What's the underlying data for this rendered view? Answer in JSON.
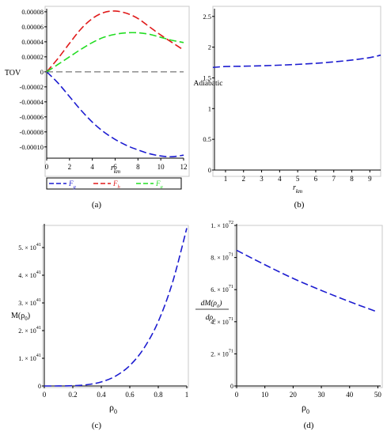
{
  "colors": {
    "blue": "#1c1cd0",
    "red": "#e01a1a",
    "green": "#22dd22",
    "axis": "#000000",
    "frame": "#c8c8c8",
    "zero_line": "#555555"
  },
  "chart_data": [
    {
      "id": "a",
      "type": "line",
      "caption": "(a)",
      "ylabel": "TOV",
      "xlabel_main": "r",
      "xlabel_sub": "km",
      "xlim": [
        0,
        12
      ],
      "ylim": [
        -0.000115,
        8.2e-05
      ],
      "xticks": [
        0,
        2,
        4,
        6,
        8,
        10,
        12
      ],
      "xtick_labels": [
        "0",
        "2",
        "4",
        "6",
        "8",
        "10",
        "12"
      ],
      "yticks": [
        8e-05,
        6e-05,
        4e-05,
        2e-05,
        0,
        -2e-05,
        -4e-05,
        -6e-05,
        -8e-05,
        -0.0001
      ],
      "ytick_labels": [
        "0.00008",
        "0.00006",
        "0.00004",
        "0.00002",
        "0",
        "-0.00002",
        "-0.00004",
        "-0.00006",
        "-0.00008",
        "-0.00010"
      ],
      "zero_line": true,
      "legend_position": "bottom-left",
      "series": [
        {
          "name": "F",
          "name_sub": "g",
          "color": "#1c1cd0",
          "x": [
            0,
            1,
            2,
            3,
            4,
            5,
            6,
            7,
            8,
            9,
            10,
            11,
            12
          ],
          "y": [
            0,
            -1.5e-05,
            -3.3e-05,
            -5.1e-05,
            -6.7e-05,
            -8e-05,
            -9e-05,
            -9.8e-05,
            -0.000104,
            -0.000109,
            -0.000112,
            -0.000113,
            -0.000111
          ]
        },
        {
          "name": "F",
          "name_sub": "h",
          "color": "#e01a1a",
          "x": [
            0,
            1,
            2,
            3,
            4,
            5,
            6,
            7,
            8,
            9,
            10,
            11,
            12
          ],
          "y": [
            0,
            1.8e-05,
            3.8e-05,
            5.7e-05,
            7.1e-05,
            7.9e-05,
            8.1e-05,
            7.8e-05,
            7.1e-05,
            6e-05,
            4.9e-05,
            3.9e-05,
            2.9e-05
          ]
        },
        {
          "name": "F",
          "name_sub": "a",
          "color": "#22dd22",
          "x": [
            0,
            1,
            2,
            3,
            4,
            5,
            6,
            7,
            8,
            9,
            10,
            11,
            12
          ],
          "y": [
            0,
            1e-05,
            2e-05,
            3e-05,
            3.9e-05,
            4.6e-05,
            5e-05,
            5.2e-05,
            5.2e-05,
            5e-05,
            4.6e-05,
            4.2e-05,
            3.9e-05
          ]
        }
      ]
    },
    {
      "id": "b",
      "type": "line",
      "caption": "(b)",
      "ylabel": "Adiabatic",
      "xlabel_main": "r",
      "xlabel_sub": "km",
      "xlim": [
        0.3,
        9.6
      ],
      "ylim": [
        0,
        2.6
      ],
      "xticks": [
        1,
        2,
        3,
        4,
        5,
        6,
        7,
        8,
        9
      ],
      "xtick_labels": [
        "1",
        "2",
        "3",
        "4",
        "5",
        "6",
        "7",
        "8",
        "9"
      ],
      "yticks": [
        0,
        0.5,
        1,
        1.5,
        2,
        2.5
      ],
      "ytick_labels": [
        "0",
        "0.5",
        "1",
        "1.5",
        "2",
        "2.5"
      ],
      "series": [
        {
          "color": "#1c1cd0",
          "x": [
            0.3,
            1,
            2,
            3,
            4,
            5,
            6,
            7,
            8,
            9,
            9.6
          ],
          "y": [
            1.67,
            1.685,
            1.69,
            1.697,
            1.707,
            1.72,
            1.737,
            1.76,
            1.79,
            1.83,
            1.87
          ]
        }
      ]
    },
    {
      "id": "c",
      "type": "line",
      "caption": "(c)",
      "ylabel_main": "M(ρ",
      "ylabel_sub": "0",
      "ylabel_tail": ")",
      "xlabel_main": "ρ",
      "xlabel_sub": "0",
      "xlim": [
        0,
        1
      ],
      "ylim": [
        0,
        5.8e+41
      ],
      "xticks": [
        0,
        0.2,
        0.4,
        0.6,
        0.8,
        1
      ],
      "xtick_labels": [
        "0",
        "0.2",
        "0.4",
        "0.6",
        "0.8",
        "1"
      ],
      "yticks": [
        0,
        1e+41,
        2e+41,
        3e+41,
        4e+41,
        5e+41
      ],
      "ytick_labels": [
        {
          "mant": "0",
          "exp": ""
        },
        {
          "mant": "1. × 10",
          "exp": "41"
        },
        {
          "mant": "2. × 10",
          "exp": "41"
        },
        {
          "mant": "3. × 10",
          "exp": "41"
        },
        {
          "mant": "4. × 10",
          "exp": "41"
        },
        {
          "mant": "5. × 10",
          "exp": "41"
        }
      ],
      "series": [
        {
          "color": "#1c1cd0",
          "x": [
            0,
            0.1,
            0.2,
            0.3,
            0.4,
            0.5,
            0.6,
            0.7,
            0.8,
            0.9,
            1.0
          ],
          "y": [
            0,
            5.7e+37,
            9.1e+38,
            4.6e+39,
            1.46e+40,
            3.56e+40,
            7.38e+40,
            1.37e+41,
            2.33e+41,
            3.74e+41,
            5.7e+41
          ]
        }
      ]
    },
    {
      "id": "d",
      "type": "line",
      "caption": "(d)",
      "ylabel_num": "dM(ρ",
      "ylabel_num_sub": "0",
      "ylabel_num_tail": ")",
      "ylabel_den": "dρ",
      "ylabel_den_sub": "0",
      "xlabel_main": "ρ",
      "xlabel_sub": "0",
      "xlim": [
        0,
        51
      ],
      "ylim": [
        0,
        1e+72
      ],
      "xticks": [
        0,
        10,
        20,
        30,
        40,
        50
      ],
      "xtick_labels": [
        "0",
        "10",
        "20",
        "30",
        "40",
        "50"
      ],
      "yticks": [
        0,
        2e+71,
        4e+71,
        6e+71,
        8e+71,
        1e+72
      ],
      "ytick_labels": [
        {
          "mant": "0",
          "exp": ""
        },
        {
          "mant": "2. × 10",
          "exp": "71"
        },
        {
          "mant": "4. × 10",
          "exp": "71"
        },
        {
          "mant": "6. × 10",
          "exp": "71"
        },
        {
          "mant": "8. × 10",
          "exp": "71"
        },
        {
          "mant": "1. × 10",
          "exp": "72"
        }
      ],
      "series": [
        {
          "color": "#1c1cd0",
          "x": [
            0,
            10,
            20,
            30,
            40,
            50
          ],
          "y": [
            8.45e+71,
            7.55e+71,
            6.7e+71,
            5.95e+71,
            5.25e+71,
            4.6e+71
          ]
        }
      ]
    }
  ]
}
